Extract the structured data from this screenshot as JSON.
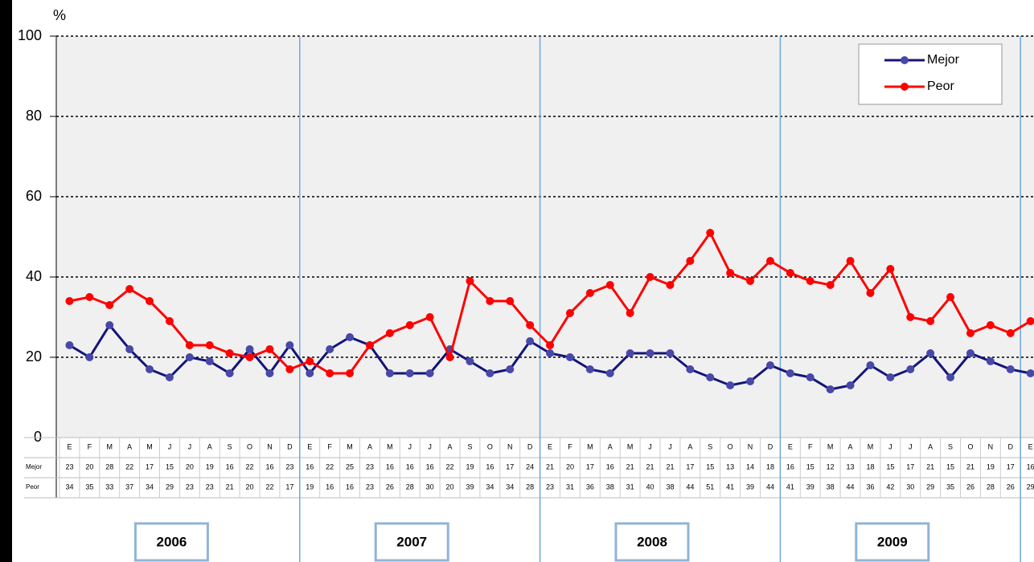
{
  "chart_data": {
    "type": "line",
    "y_label": "%",
    "ylim": [
      0,
      100
    ],
    "yticks": [
      0,
      20,
      40,
      60,
      80,
      100
    ],
    "grid": true,
    "legend": "upper right",
    "categories": [
      "E",
      "F",
      "M",
      "A",
      "M",
      "J",
      "J",
      "A",
      "S",
      "O",
      "N",
      "D",
      "E",
      "F",
      "M",
      "A",
      "M",
      "J",
      "J",
      "A",
      "S",
      "O",
      "N",
      "D",
      "E",
      "F",
      "M",
      "A",
      "M",
      "J",
      "J",
      "A",
      "S",
      "O",
      "N",
      "D",
      "E",
      "F",
      "M",
      "A",
      "M",
      "J",
      "J",
      "A",
      "S",
      "O",
      "N",
      "D",
      "E"
    ],
    "year_labels": [
      "2006",
      "2007",
      "2008",
      "2009"
    ],
    "series": [
      {
        "name": "Mejor",
        "color": "#14147a",
        "marker_color": "#4848a8",
        "values": [
          23,
          20,
          28,
          22,
          17,
          15,
          20,
          19,
          16,
          22,
          16,
          23,
          16,
          22,
          25,
          23,
          16,
          16,
          16,
          22,
          19,
          16,
          17,
          24,
          21,
          20,
          17,
          16,
          21,
          21,
          21,
          17,
          15,
          13,
          14,
          18,
          16,
          15,
          12,
          13,
          18,
          15,
          17,
          21,
          15,
          21,
          19,
          17,
          16
        ]
      },
      {
        "name": "Peor",
        "color": "#ff0000",
        "marker_color": "#ff0000",
        "values": [
          34,
          35,
          33,
          37,
          34,
          29,
          23,
          23,
          21,
          20,
          22,
          17,
          19,
          16,
          16,
          23,
          26,
          28,
          30,
          20,
          39,
          34,
          34,
          28,
          23,
          31,
          36,
          38,
          31,
          40,
          38,
          44,
          51,
          41,
          39,
          44,
          41,
          39,
          38,
          44,
          36,
          42,
          30,
          29,
          35,
          26,
          28,
          26,
          29
        ]
      }
    ]
  }
}
